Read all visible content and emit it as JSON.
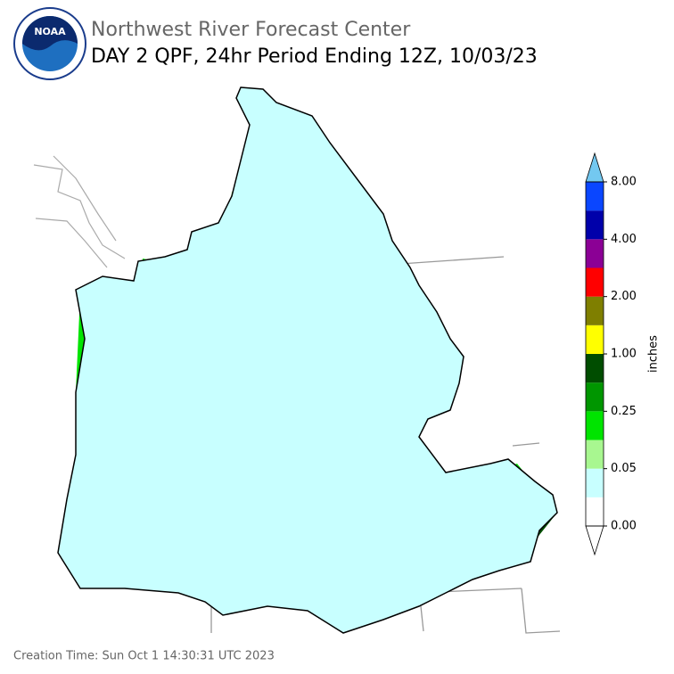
{
  "header": {
    "title": "Northwest River Forecast Center",
    "subtitle": "DAY 2 QPF, 24hr Period Ending 12Z, 10/03/23",
    "logo": "NOAA"
  },
  "legend": {
    "label": "inches",
    "ticks": [
      "0.00",
      "0.05",
      "0.25",
      "1.00",
      "2.00",
      "4.00",
      "8.00"
    ],
    "colors": [
      "#ffffff",
      "#c8ffff",
      "#a8f790",
      "#00e400",
      "#009600",
      "#004d00",
      "#ffff00",
      "#7f7f00",
      "#ff0000",
      "#8b0095",
      "#0000aa",
      "#0a46ff"
    ],
    "under_color": "#ffffff",
    "over_color": "#73c8f0"
  },
  "footer": {
    "creation_time": "Creation Time: Sun Oct 1 14:30:31 UTC 2023"
  }
}
